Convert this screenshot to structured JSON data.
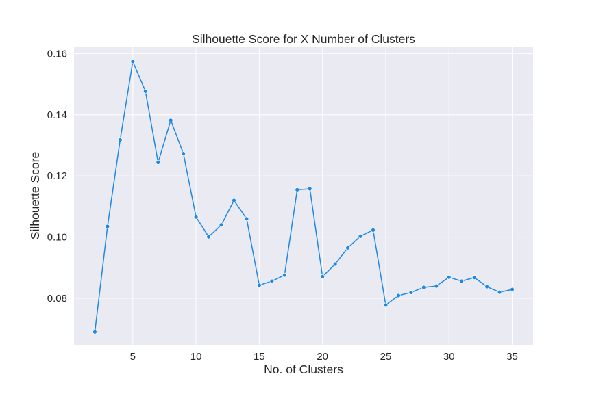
{
  "chart_data": {
    "type": "line",
    "title": "Silhouette Score for X Number of Clusters",
    "xlabel": "No. of Clusters",
    "ylabel": "Silhouette Score",
    "xlim": [
      0.35,
      36.65
    ],
    "ylim": [
      0.0648,
      0.1621
    ],
    "xticks": [
      5,
      10,
      15,
      20,
      25,
      30,
      35
    ],
    "xtick_labels": [
      "5",
      "10",
      "15",
      "20",
      "25",
      "30",
      "35"
    ],
    "yticks": [
      0.08,
      0.1,
      0.12,
      0.14,
      0.16
    ],
    "ytick_labels": [
      "0.08",
      "0.10",
      "0.12",
      "0.14",
      "0.16"
    ],
    "grid": true,
    "background": "#eaeaf2",
    "series": [
      {
        "color": "#1e88e5",
        "marker": "circle",
        "x": [
          2,
          3,
          4,
          5,
          6,
          7,
          8,
          9,
          10,
          11,
          12,
          13,
          14,
          15,
          16,
          17,
          18,
          19,
          20,
          21,
          22,
          23,
          24,
          25,
          26,
          27,
          28,
          29,
          30,
          31,
          32,
          33,
          34,
          35
        ],
        "y": [
          0.069,
          0.1035,
          0.1318,
          0.1574,
          0.1477,
          0.1244,
          0.1382,
          0.1273,
          0.1066,
          0.1001,
          0.104,
          0.112,
          0.106,
          0.0843,
          0.0856,
          0.0876,
          0.1155,
          0.1158,
          0.0871,
          0.0912,
          0.0965,
          0.1003,
          0.1023,
          0.0778,
          0.0809,
          0.0819,
          0.0836,
          0.084,
          0.0869,
          0.0856,
          0.0868,
          0.0838,
          0.082,
          0.0829
        ]
      }
    ]
  }
}
